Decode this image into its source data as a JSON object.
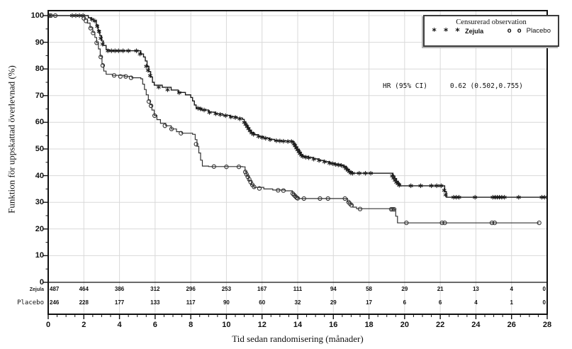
{
  "chart_data": {
    "type": "line",
    "subtype": "kaplan-meier-step-survival",
    "title": "",
    "xlabel": "Tid sedan randomisering (månader)",
    "ylabel": "Funktion  för uppskattad överlevnad (%)",
    "xlim": [
      0,
      28
    ],
    "ylim": [
      0,
      100
    ],
    "x_major_ticks": [
      0,
      2,
      4,
      6,
      8,
      10,
      12,
      14,
      16,
      18,
      20,
      22,
      24,
      26,
      28
    ],
    "y_major_ticks": [
      0,
      10,
      20,
      30,
      40,
      50,
      60,
      70,
      80,
      90,
      100
    ],
    "x_minor_step": 0.5,
    "y_minor_step": 5,
    "grid": true,
    "grid_color": "#d9d9d9",
    "frame_color": "#111111",
    "legend_position": "top-right-inside",
    "annotation": {
      "label": "HR (95% CI)",
      "value": "0.62 (0.502,0.755)"
    },
    "legend": {
      "title": "Censurerad observation",
      "items": [
        {
          "symbol": "* * *",
          "label": "Zejula"
        },
        {
          "symbol": "o o",
          "label": "Placebo"
        }
      ]
    },
    "series": [
      {
        "name": "Zejula",
        "marker": "asterisk",
        "color": "#1a1a1a",
        "steps": [
          [
            0,
            100
          ],
          [
            2.1,
            100
          ],
          [
            2.25,
            99.2
          ],
          [
            2.4,
            98.6
          ],
          [
            2.55,
            98
          ],
          [
            2.7,
            96.5
          ],
          [
            2.8,
            94.5
          ],
          [
            2.9,
            92.5
          ],
          [
            3.0,
            90.5
          ],
          [
            3.1,
            88.8
          ],
          [
            3.25,
            87.2
          ],
          [
            3.45,
            86.8
          ],
          [
            5.1,
            86.8
          ],
          [
            5.2,
            85.6
          ],
          [
            5.35,
            84.5
          ],
          [
            5.45,
            83
          ],
          [
            5.55,
            81
          ],
          [
            5.65,
            79
          ],
          [
            5.75,
            77
          ],
          [
            5.85,
            75
          ],
          [
            5.95,
            73.9
          ],
          [
            6.4,
            73.1
          ],
          [
            6.9,
            72.1
          ],
          [
            7.3,
            71.2
          ],
          [
            7.7,
            70.3
          ],
          [
            8.0,
            69.3
          ],
          [
            8.1,
            68
          ],
          [
            8.2,
            66.5
          ],
          [
            8.3,
            65.3
          ],
          [
            8.6,
            64.6
          ],
          [
            9.0,
            63.8
          ],
          [
            9.4,
            63.2
          ],
          [
            9.8,
            62.6
          ],
          [
            10.2,
            62.1
          ],
          [
            10.6,
            61.6
          ],
          [
            10.9,
            61.1
          ],
          [
            11.0,
            60
          ],
          [
            11.1,
            59
          ],
          [
            11.2,
            58
          ],
          [
            11.3,
            57
          ],
          [
            11.4,
            56.2
          ],
          [
            11.55,
            55.4
          ],
          [
            11.8,
            54.7
          ],
          [
            12.1,
            54.1
          ],
          [
            12.4,
            53.6
          ],
          [
            12.7,
            53.2
          ],
          [
            13.0,
            53
          ],
          [
            13.7,
            52.8
          ],
          [
            13.8,
            51.8
          ],
          [
            13.9,
            50.8
          ],
          [
            14.0,
            49.8
          ],
          [
            14.1,
            48.8
          ],
          [
            14.2,
            47.8
          ],
          [
            14.3,
            47.2
          ],
          [
            14.6,
            46.8
          ],
          [
            14.9,
            46.3
          ],
          [
            15.2,
            45.7
          ],
          [
            15.5,
            45.2
          ],
          [
            15.8,
            44.7
          ],
          [
            16.1,
            44.3
          ],
          [
            16.4,
            43.9
          ],
          [
            16.6,
            43.4
          ],
          [
            16.75,
            42.4
          ],
          [
            16.9,
            41.5
          ],
          [
            17.05,
            40.9
          ],
          [
            19.25,
            40.9
          ],
          [
            19.35,
            39.9
          ],
          [
            19.45,
            38.9
          ],
          [
            19.55,
            37.9
          ],
          [
            19.65,
            37
          ],
          [
            19.75,
            36.2
          ],
          [
            22.15,
            36.2
          ],
          [
            22.25,
            34
          ],
          [
            22.35,
            31.9
          ],
          [
            27.95,
            31.9
          ]
        ],
        "censor_marks": [
          [
            0.07,
            100
          ],
          [
            1.35,
            100
          ],
          [
            1.55,
            100
          ],
          [
            1.75,
            100
          ],
          [
            1.95,
            100
          ],
          [
            2.45,
            98.6
          ],
          [
            2.62,
            98
          ],
          [
            2.75,
            96
          ],
          [
            2.85,
            94
          ],
          [
            2.95,
            91.5
          ],
          [
            3.05,
            89.3
          ],
          [
            3.35,
            86.8
          ],
          [
            3.55,
            86.8
          ],
          [
            3.75,
            86.8
          ],
          [
            3.95,
            86.8
          ],
          [
            4.2,
            86.8
          ],
          [
            4.5,
            86.8
          ],
          [
            4.95,
            86.8
          ],
          [
            5.15,
            85.6
          ],
          [
            5.5,
            81
          ],
          [
            5.6,
            79.5
          ],
          [
            5.72,
            77.5
          ],
          [
            6.2,
            73.2
          ],
          [
            6.7,
            72.2
          ],
          [
            7.35,
            71.1
          ],
          [
            8.4,
            65.3
          ],
          [
            8.55,
            65
          ],
          [
            8.75,
            64.6
          ],
          [
            9.05,
            63.7
          ],
          [
            9.4,
            63.2
          ],
          [
            9.65,
            62.9
          ],
          [
            9.95,
            62.5
          ],
          [
            10.25,
            62
          ],
          [
            10.5,
            61.8
          ],
          [
            10.75,
            61.3
          ],
          [
            11.0,
            60
          ],
          [
            11.08,
            59.2
          ],
          [
            11.16,
            58.4
          ],
          [
            11.24,
            57.6
          ],
          [
            11.32,
            56.8
          ],
          [
            11.42,
            56
          ],
          [
            11.52,
            55.5
          ],
          [
            11.8,
            54.7
          ],
          [
            12.0,
            54.3
          ],
          [
            12.2,
            54
          ],
          [
            12.45,
            53.5
          ],
          [
            12.8,
            53.1
          ],
          [
            13.0,
            53
          ],
          [
            13.2,
            52.9
          ],
          [
            13.45,
            52.8
          ],
          [
            13.65,
            52.8
          ],
          [
            13.78,
            51.9
          ],
          [
            13.85,
            51.2
          ],
          [
            13.92,
            50.4
          ],
          [
            13.99,
            49.7
          ],
          [
            14.06,
            49
          ],
          [
            14.13,
            48.3
          ],
          [
            14.2,
            47.7
          ],
          [
            14.28,
            47.2
          ],
          [
            14.45,
            46.9
          ],
          [
            14.62,
            46.7
          ],
          [
            14.9,
            46.2
          ],
          [
            15.2,
            45.7
          ],
          [
            15.5,
            45.2
          ],
          [
            15.78,
            44.7
          ],
          [
            15.95,
            44.5
          ],
          [
            16.12,
            44.2
          ],
          [
            16.28,
            44
          ],
          [
            16.45,
            43.8
          ],
          [
            16.62,
            43.3
          ],
          [
            16.72,
            42.6
          ],
          [
            16.82,
            42
          ],
          [
            16.9,
            41.5
          ],
          [
            16.98,
            41
          ],
          [
            17.08,
            40.9
          ],
          [
            17.45,
            40.9
          ],
          [
            17.8,
            40.9
          ],
          [
            18.1,
            40.9
          ],
          [
            19.3,
            39.9
          ],
          [
            19.38,
            39.1
          ],
          [
            19.46,
            38.3
          ],
          [
            19.54,
            37.5
          ],
          [
            19.62,
            37
          ],
          [
            19.7,
            36.4
          ],
          [
            20.35,
            36.2
          ],
          [
            20.9,
            36.2
          ],
          [
            21.5,
            36.2
          ],
          [
            21.8,
            36.2
          ],
          [
            22.05,
            36.2
          ],
          [
            22.22,
            34.5
          ],
          [
            22.3,
            32.8
          ],
          [
            22.75,
            31.9
          ],
          [
            22.9,
            31.9
          ],
          [
            23.05,
            31.9
          ],
          [
            23.95,
            31.9
          ],
          [
            24.95,
            31.9
          ],
          [
            25.08,
            31.9
          ],
          [
            25.2,
            31.9
          ],
          [
            25.32,
            31.9
          ],
          [
            25.45,
            31.9
          ],
          [
            25.6,
            31.9
          ],
          [
            26.4,
            31.9
          ],
          [
            27.7,
            31.9
          ],
          [
            27.85,
            31.9
          ]
        ]
      },
      {
        "name": "Placebo",
        "marker": "circle",
        "color": "#333333",
        "steps": [
          [
            0,
            100
          ],
          [
            1.95,
            100
          ],
          [
            2.05,
            98.7
          ],
          [
            2.2,
            97.2
          ],
          [
            2.35,
            95.5
          ],
          [
            2.5,
            93.7
          ],
          [
            2.62,
            91.8
          ],
          [
            2.72,
            89.8
          ],
          [
            2.82,
            87.5
          ],
          [
            2.92,
            84.8
          ],
          [
            3.02,
            81.8
          ],
          [
            3.12,
            79.2
          ],
          [
            3.25,
            78
          ],
          [
            3.6,
            77.6
          ],
          [
            4.3,
            77.2
          ],
          [
            4.7,
            76.7
          ],
          [
            5.2,
            76.3
          ],
          [
            5.3,
            74.3
          ],
          [
            5.4,
            72.3
          ],
          [
            5.5,
            70.3
          ],
          [
            5.62,
            68.3
          ],
          [
            5.72,
            66.6
          ],
          [
            5.82,
            64.6
          ],
          [
            5.95,
            62.6
          ],
          [
            6.1,
            61
          ],
          [
            6.3,
            59.6
          ],
          [
            6.6,
            58.7
          ],
          [
            6.9,
            57.5
          ],
          [
            7.2,
            56.5
          ],
          [
            7.5,
            55.9
          ],
          [
            8.1,
            55.5
          ],
          [
            8.25,
            53.5
          ],
          [
            8.35,
            51
          ],
          [
            8.45,
            48.5
          ],
          [
            8.55,
            45.8
          ],
          [
            8.65,
            43.6
          ],
          [
            9.0,
            43.4
          ],
          [
            10.9,
            43.3
          ],
          [
            11.05,
            41.6
          ],
          [
            11.15,
            39.8
          ],
          [
            11.25,
            38.2
          ],
          [
            11.4,
            36.6
          ],
          [
            11.55,
            35.6
          ],
          [
            12.1,
            35
          ],
          [
            12.6,
            34.6
          ],
          [
            13.3,
            34.3
          ],
          [
            13.7,
            33.4
          ],
          [
            13.8,
            32.6
          ],
          [
            13.9,
            31.9
          ],
          [
            14.05,
            31.4
          ],
          [
            16.6,
            31.4
          ],
          [
            16.8,
            30.2
          ],
          [
            16.95,
            29.3
          ],
          [
            17.1,
            28.2
          ],
          [
            17.3,
            27.6
          ],
          [
            19.4,
            27.4
          ],
          [
            19.5,
            24.8
          ],
          [
            19.6,
            22.3
          ],
          [
            27.55,
            22.3
          ]
        ],
        "censor_marks": [
          [
            0.15,
            100
          ],
          [
            0.4,
            100
          ],
          [
            2.0,
            99
          ],
          [
            2.12,
            98
          ],
          [
            2.38,
            95.3
          ],
          [
            2.52,
            93.5
          ],
          [
            2.72,
            89.8
          ],
          [
            2.95,
            84.5
          ],
          [
            3.06,
            81.3
          ],
          [
            3.7,
            77.6
          ],
          [
            4.05,
            77.2
          ],
          [
            4.35,
            77.2
          ],
          [
            4.65,
            76.7
          ],
          [
            5.65,
            67.8
          ],
          [
            5.77,
            66.2
          ],
          [
            5.97,
            62.5
          ],
          [
            6.55,
            58.7
          ],
          [
            6.92,
            57.5
          ],
          [
            7.45,
            55.9
          ],
          [
            8.3,
            51.8
          ],
          [
            9.3,
            43.4
          ],
          [
            10.0,
            43.3
          ],
          [
            10.7,
            43.3
          ],
          [
            11.06,
            41.4
          ],
          [
            11.13,
            40.5
          ],
          [
            11.2,
            39.6
          ],
          [
            11.28,
            38.6
          ],
          [
            11.36,
            37.6
          ],
          [
            11.45,
            36.6
          ],
          [
            11.55,
            35.8
          ],
          [
            11.85,
            35.2
          ],
          [
            12.9,
            34.5
          ],
          [
            13.2,
            34.4
          ],
          [
            13.72,
            33.3
          ],
          [
            13.79,
            32.8
          ],
          [
            13.86,
            32.3
          ],
          [
            13.93,
            31.8
          ],
          [
            14.0,
            31.5
          ],
          [
            14.35,
            31.4
          ],
          [
            15.25,
            31.4
          ],
          [
            15.7,
            31.4
          ],
          [
            16.65,
            31.4
          ],
          [
            16.85,
            30.1
          ],
          [
            16.93,
            29.5
          ],
          [
            17.02,
            28.9
          ],
          [
            17.5,
            27.5
          ],
          [
            19.25,
            27.4
          ],
          [
            19.33,
            27.4
          ],
          [
            19.41,
            27.4
          ],
          [
            20.1,
            22.3
          ],
          [
            22.1,
            22.3
          ],
          [
            22.25,
            22.3
          ],
          [
            24.9,
            22.3
          ],
          [
            25.05,
            22.3
          ],
          [
            27.55,
            22.3
          ]
        ]
      }
    ],
    "at_risk": {
      "x": [
        0,
        2,
        4,
        6,
        8,
        10,
        12,
        14,
        16,
        18,
        20,
        22,
        24,
        26,
        28
      ],
      "rows": [
        {
          "label": "Zejula",
          "counts": [
            487,
            464,
            386,
            312,
            296,
            253,
            167,
            111,
            94,
            58,
            29,
            21,
            13,
            4,
            0
          ]
        },
        {
          "label": "Placebo",
          "counts": [
            246,
            228,
            177,
            133,
            117,
            90,
            60,
            32,
            29,
            17,
            6,
            6,
            4,
            1,
            0
          ]
        }
      ]
    }
  }
}
